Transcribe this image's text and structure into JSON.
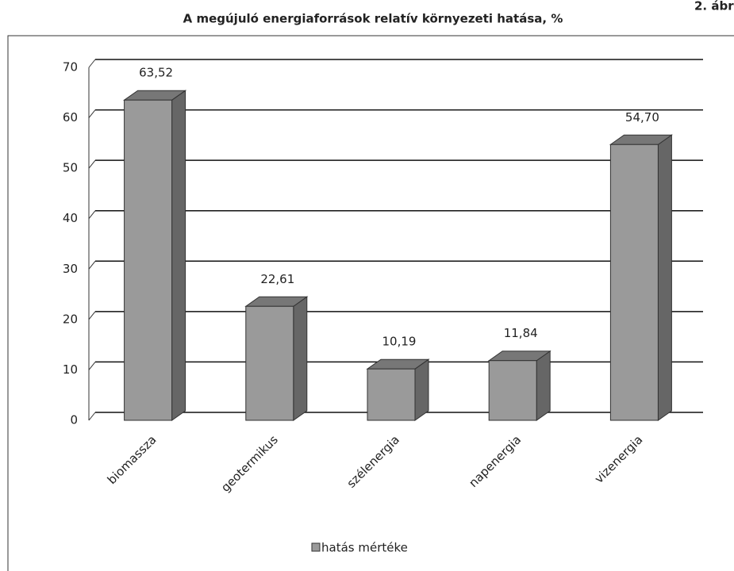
{
  "chart_data": {
    "type": "bar3d",
    "title": "A megújuló energiaforrások relatív környezeti hatása, %",
    "figure_label": "2. ábr",
    "categories": [
      "biomassza",
      "geotermikus",
      "szélenergia",
      "napenergia",
      "vizenergia"
    ],
    "series": [
      {
        "name": "hatás mértéke",
        "color": "#9a9a9a",
        "values": [
          63.52,
          22.61,
          10.19,
          11.84,
          54.7
        ],
        "value_labels": [
          "63,52",
          "22,61",
          "10,19",
          "11,84",
          "54,70"
        ]
      }
    ],
    "ylim": [
      0,
      70
    ],
    "yticks": [
      0,
      10,
      20,
      30,
      40,
      50,
      60,
      70
    ],
    "grid": true,
    "legend": "bottom"
  }
}
